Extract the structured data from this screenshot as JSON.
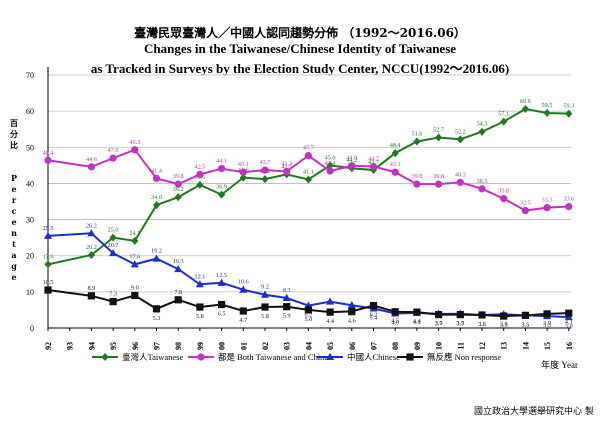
{
  "title_zh": "臺灣民眾臺灣人／中國人認同趨勢分佈 （1992～2016.06）",
  "title_en_1": "Changes in the Taiwanese/Chinese Identity of Taiwanese",
  "title_en_2": "as Tracked in Surveys by the Election Study Center, NCCU(1992～2016.06)",
  "credit": "國立政治大學選舉研究中心 製",
  "chart_data": {
    "type": "line",
    "ylabel_zh": "百分比",
    "ylabel_en": "Percentage",
    "xlabel": "年度 Year",
    "ylim": [
      0,
      70
    ],
    "yticks": [
      0,
      10,
      20,
      30,
      40,
      50,
      60,
      70
    ],
    "grid": "horizontal",
    "legend": "bottom",
    "x_tick_labels": [
      "92",
      "93",
      "94",
      "95",
      "96",
      "97",
      "98",
      "99",
      "00",
      "01",
      "02",
      "03",
      "04",
      "05",
      "06",
      "07",
      "08",
      "09",
      "10",
      "11",
      "12",
      "13",
      "14",
      "15",
      "16"
    ],
    "series": [
      {
        "name": "臺灣人Taiwanese",
        "color": "#1f7a1f",
        "marker": "diamond",
        "points": [
          [
            92,
            17.6
          ],
          [
            94,
            20.2
          ],
          [
            95,
            25.0
          ],
          [
            96,
            24.1
          ],
          [
            97,
            34.0
          ],
          [
            98,
            36.2
          ],
          [
            99,
            39.6
          ],
          [
            2000,
            36.9
          ],
          [
            2001,
            41.6
          ],
          [
            2002,
            41.2
          ],
          [
            2003,
            42.5
          ],
          [
            2004,
            41.1
          ],
          [
            2005,
            45.0
          ],
          [
            2006,
            44.2
          ],
          [
            2007,
            43.7
          ],
          [
            2008,
            48.4
          ],
          [
            2009,
            51.6
          ],
          [
            2010,
            52.7
          ],
          [
            2011,
            52.2
          ],
          [
            2012,
            54.3
          ],
          [
            2013,
            57.1
          ],
          [
            2014,
            60.6
          ],
          [
            2015,
            59.5
          ],
          [
            2016,
            59.3
          ]
        ]
      },
      {
        "name": "都是 Both Taiwanese and Chinese",
        "color": "#c62fc6",
        "marker": "circle",
        "points": [
          [
            92,
            46.4
          ],
          [
            94,
            44.6
          ],
          [
            95,
            47.0
          ],
          [
            96,
            49.3
          ],
          [
            97,
            41.4
          ],
          [
            98,
            39.8
          ],
          [
            99,
            42.5
          ],
          [
            2000,
            44.1
          ],
          [
            2001,
            43.1
          ],
          [
            2002,
            43.7
          ],
          [
            2003,
            43.3
          ],
          [
            2004,
            47.7
          ],
          [
            2005,
            43.4
          ],
          [
            2006,
            44.9
          ],
          [
            2007,
            44.7
          ],
          [
            2008,
            43.1
          ],
          [
            2009,
            39.8
          ],
          [
            2010,
            39.8
          ],
          [
            2011,
            40.3
          ],
          [
            2012,
            38.5
          ],
          [
            2013,
            35.8
          ],
          [
            2014,
            32.5
          ],
          [
            2015,
            33.3
          ],
          [
            2016,
            33.6
          ]
        ]
      },
      {
        "name": "中國人Chinese",
        "color": "#1c2fcc",
        "marker": "triangle",
        "points": [
          [
            92,
            25.5
          ],
          [
            94,
            26.2
          ],
          [
            95,
            20.7
          ],
          [
            96,
            17.6
          ],
          [
            97,
            19.2
          ],
          [
            98,
            16.3
          ],
          [
            99,
            12.1
          ],
          [
            2000,
            12.5
          ],
          [
            2001,
            10.6
          ],
          [
            2002,
            9.2
          ],
          [
            2003,
            8.3
          ],
          [
            2004,
            6.2
          ],
          [
            2005,
            7.3
          ],
          [
            2006,
            6.3
          ],
          [
            2007,
            5.4
          ],
          [
            2008,
            4.0
          ],
          [
            2009,
            4.2
          ],
          [
            2010,
            3.9
          ],
          [
            2011,
            3.9
          ],
          [
            2012,
            3.6
          ],
          [
            2013,
            3.8
          ],
          [
            2014,
            3.5
          ],
          [
            2015,
            3.3
          ],
          [
            2016,
            3.0
          ]
        ]
      },
      {
        "name": "無反應 Non response",
        "color": "#111111",
        "marker": "square",
        "points": [
          [
            92,
            10.5
          ],
          [
            94,
            8.9
          ],
          [
            95,
            7.3
          ],
          [
            96,
            9.0
          ],
          [
            97,
            5.3
          ],
          [
            98,
            7.8
          ],
          [
            99,
            5.8
          ],
          [
            2000,
            6.5
          ],
          [
            2001,
            4.7
          ],
          [
            2002,
            5.8
          ],
          [
            2003,
            5.9
          ],
          [
            2004,
            5.0
          ],
          [
            2005,
            4.4
          ],
          [
            2006,
            4.6
          ],
          [
            2007,
            6.2
          ],
          [
            2008,
            4.5
          ],
          [
            2009,
            4.4
          ],
          [
            2010,
            3.7
          ],
          [
            2011,
            3.7
          ],
          [
            2012,
            3.6
          ],
          [
            2013,
            3.3
          ],
          [
            2014,
            3.5
          ],
          [
            2015,
            3.9
          ],
          [
            2016,
            4.1
          ]
        ]
      }
    ]
  }
}
